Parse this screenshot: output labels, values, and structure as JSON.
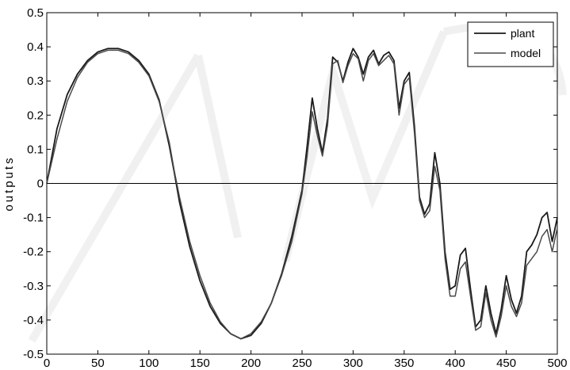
{
  "chart_data": {
    "type": "line",
    "title": "",
    "xlabel": "",
    "ylabel": "outputs",
    "xlim": [
      0,
      500
    ],
    "ylim": [
      -0.5,
      0.5
    ],
    "xticks": [
      0,
      50,
      100,
      150,
      200,
      250,
      300,
      350,
      400,
      450,
      500
    ],
    "yticks": [
      -0.5,
      -0.4,
      -0.3,
      -0.2,
      -0.1,
      0,
      0.1,
      0.2,
      0.3,
      0.4,
      0.5
    ],
    "xtick_labels": [
      "0",
      "50",
      "100",
      "150",
      "200",
      "250",
      "300",
      "350",
      "400",
      "450",
      "500"
    ],
    "ytick_labels": [
      "-0.5",
      "-0.4",
      "-0.3",
      "-0.2",
      "-0.1",
      "0",
      "0.1",
      "0.2",
      "0.3",
      "0.4",
      "0.5"
    ],
    "zero_line": true,
    "grid": false,
    "legend_position": "top-right",
    "series": [
      {
        "name": "plant",
        "color": "#1a1a1a",
        "x": [
          0,
          10,
          20,
          30,
          40,
          50,
          60,
          70,
          80,
          90,
          100,
          110,
          120,
          125,
          130,
          140,
          150,
          160,
          170,
          180,
          190,
          200,
          210,
          220,
          230,
          240,
          250,
          255,
          260,
          265,
          270,
          275,
          280,
          285,
          290,
          295,
          300,
          305,
          310,
          315,
          320,
          325,
          330,
          335,
          340,
          345,
          350,
          355,
          360,
          365,
          370,
          375,
          380,
          385,
          390,
          395,
          400,
          405,
          410,
          415,
          420,
          425,
          430,
          435,
          440,
          445,
          450,
          455,
          460,
          465,
          470,
          475,
          480,
          485,
          490,
          495,
          500
        ],
        "y": [
          0,
          0.16,
          0.26,
          0.32,
          0.36,
          0.385,
          0.395,
          0.395,
          0.385,
          0.36,
          0.32,
          0.245,
          0.11,
          0.03,
          -0.055,
          -0.185,
          -0.285,
          -0.36,
          -0.41,
          -0.44,
          -0.455,
          -0.445,
          -0.41,
          -0.35,
          -0.265,
          -0.155,
          -0.02,
          0.11,
          0.25,
          0.16,
          0.09,
          0.19,
          0.37,
          0.355,
          0.3,
          0.355,
          0.395,
          0.37,
          0.32,
          0.37,
          0.39,
          0.35,
          0.375,
          0.385,
          0.36,
          0.22,
          0.3,
          0.325,
          0.17,
          -0.04,
          -0.09,
          -0.06,
          0.09,
          0.0,
          -0.2,
          -0.31,
          -0.3,
          -0.21,
          -0.19,
          -0.31,
          -0.42,
          -0.4,
          -0.3,
          -0.38,
          -0.44,
          -0.37,
          -0.27,
          -0.34,
          -0.38,
          -0.33,
          -0.2,
          -0.18,
          -0.15,
          -0.1,
          -0.085,
          -0.17,
          -0.1
        ]
      },
      {
        "name": "model",
        "color": "#4a4a4a",
        "x": [
          0,
          10,
          20,
          30,
          40,
          50,
          60,
          70,
          80,
          90,
          100,
          110,
          120,
          125,
          130,
          140,
          150,
          160,
          170,
          180,
          190,
          200,
          210,
          220,
          230,
          240,
          250,
          255,
          260,
          265,
          270,
          275,
          280,
          285,
          290,
          295,
          300,
          305,
          310,
          315,
          320,
          325,
          330,
          335,
          340,
          345,
          350,
          355,
          360,
          365,
          370,
          375,
          380,
          385,
          390,
          395,
          400,
          405,
          410,
          415,
          420,
          425,
          430,
          435,
          440,
          445,
          450,
          455,
          460,
          465,
          470,
          475,
          480,
          485,
          490,
          495,
          500
        ],
        "y": [
          0,
          0.13,
          0.24,
          0.31,
          0.355,
          0.38,
          0.39,
          0.39,
          0.38,
          0.355,
          0.315,
          0.24,
          0.12,
          0.035,
          -0.04,
          -0.17,
          -0.27,
          -0.35,
          -0.405,
          -0.44,
          -0.455,
          -0.44,
          -0.405,
          -0.35,
          -0.27,
          -0.17,
          -0.03,
          0.08,
          0.21,
          0.14,
          0.08,
          0.17,
          0.35,
          0.36,
          0.295,
          0.345,
          0.38,
          0.365,
          0.3,
          0.36,
          0.38,
          0.345,
          0.36,
          0.375,
          0.35,
          0.2,
          0.29,
          0.31,
          0.15,
          -0.05,
          -0.1,
          -0.08,
          0.05,
          -0.02,
          -0.22,
          -0.33,
          -0.33,
          -0.25,
          -0.23,
          -0.33,
          -0.43,
          -0.42,
          -0.32,
          -0.4,
          -0.45,
          -0.39,
          -0.3,
          -0.36,
          -0.39,
          -0.35,
          -0.24,
          -0.22,
          -0.2,
          -0.155,
          -0.135,
          -0.2,
          -0.13
        ]
      }
    ]
  }
}
